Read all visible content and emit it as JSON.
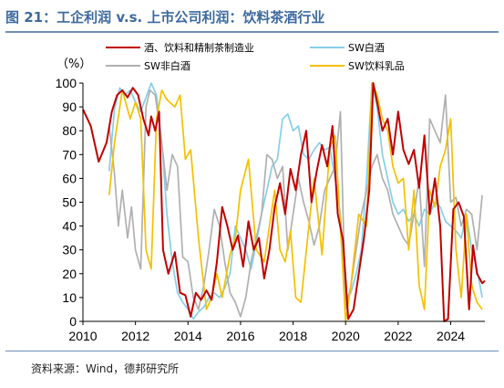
{
  "figure": {
    "title": "图 21：工企利润 v.s. 上市公司利润：饮料茶酒行业",
    "source": "资料来源：Wind，德邦研究所"
  },
  "chart_data": {
    "type": "line",
    "unit_label": "（%）",
    "xlim": [
      2010,
      2025.3
    ],
    "ylim": [
      0,
      100
    ],
    "x_ticks": [
      2010,
      2012,
      2014,
      2016,
      2018,
      2020,
      2022,
      2024
    ],
    "y_ticks": [
      0,
      10,
      20,
      30,
      40,
      50,
      60,
      70,
      80,
      90,
      100
    ],
    "grid": false,
    "legend": "top, two columns",
    "series": [
      {
        "name": "酒、饮料和精制茶制造业",
        "color": "#c00000",
        "points": [
          [
            2010.0,
            89
          ],
          [
            2010.3,
            82
          ],
          [
            2010.6,
            67
          ],
          [
            2010.9,
            75
          ],
          [
            2011.1,
            88
          ],
          [
            2011.3,
            95
          ],
          [
            2011.5,
            97
          ],
          [
            2011.7,
            94
          ],
          [
            2011.9,
            98
          ],
          [
            2012.1,
            95
          ],
          [
            2012.3,
            85
          ],
          [
            2012.5,
            78
          ],
          [
            2012.6,
            86
          ],
          [
            2012.75,
            80
          ],
          [
            2012.9,
            88
          ],
          [
            2013.05,
            30
          ],
          [
            2013.25,
            20
          ],
          [
            2013.5,
            29
          ],
          [
            2013.7,
            12
          ],
          [
            2013.9,
            11
          ],
          [
            2014.1,
            2
          ],
          [
            2014.3,
            12
          ],
          [
            2014.5,
            9
          ],
          [
            2014.7,
            13
          ],
          [
            2014.9,
            9
          ],
          [
            2015.1,
            25
          ],
          [
            2015.3,
            48
          ],
          [
            2015.5,
            40
          ],
          [
            2015.7,
            30
          ],
          [
            2015.9,
            36
          ],
          [
            2016.1,
            23
          ],
          [
            2016.3,
            42
          ],
          [
            2016.5,
            30
          ],
          [
            2016.7,
            35
          ],
          [
            2016.9,
            18
          ],
          [
            2017.1,
            30
          ],
          [
            2017.3,
            48
          ],
          [
            2017.5,
            58
          ],
          [
            2017.7,
            45
          ],
          [
            2017.9,
            64
          ],
          [
            2018.1,
            55
          ],
          [
            2018.3,
            70
          ],
          [
            2018.5,
            80
          ],
          [
            2018.7,
            50
          ],
          [
            2018.9,
            63
          ],
          [
            2019.1,
            74
          ],
          [
            2019.3,
            65
          ],
          [
            2019.5,
            82
          ],
          [
            2019.7,
            45
          ],
          [
            2019.9,
            34
          ],
          [
            2020.1,
            1
          ],
          [
            2020.3,
            5
          ],
          [
            2020.5,
            20
          ],
          [
            2020.7,
            35
          ],
          [
            2020.9,
            55
          ],
          [
            2021.05,
            100
          ],
          [
            2021.2,
            92
          ],
          [
            2021.4,
            80
          ],
          [
            2021.6,
            85
          ],
          [
            2021.8,
            70
          ],
          [
            2022.0,
            88
          ],
          [
            2022.2,
            72
          ],
          [
            2022.4,
            66
          ],
          [
            2022.6,
            72
          ],
          [
            2022.8,
            56
          ],
          [
            2023.0,
            78
          ],
          [
            2023.2,
            45
          ],
          [
            2023.4,
            60
          ],
          [
            2023.6,
            40
          ],
          [
            2023.75,
            0
          ],
          [
            2023.9,
            1
          ],
          [
            2024.1,
            47
          ],
          [
            2024.3,
            50
          ],
          [
            2024.5,
            44
          ],
          [
            2024.7,
            5
          ],
          [
            2024.85,
            32
          ],
          [
            2025.0,
            20
          ],
          [
            2025.2,
            16
          ],
          [
            2025.3,
            17
          ]
        ]
      },
      {
        "name": "SW白酒",
        "color": "#87cfe8",
        "points": [
          [
            2011.0,
            63
          ],
          [
            2011.2,
            89
          ],
          [
            2011.4,
            98
          ],
          [
            2011.6,
            95
          ],
          [
            2011.8,
            97
          ],
          [
            2012.0,
            92
          ],
          [
            2012.2,
            88
          ],
          [
            2012.4,
            94
          ],
          [
            2012.6,
            100
          ],
          [
            2012.8,
            95
          ],
          [
            2013.0,
            75
          ],
          [
            2013.2,
            45
          ],
          [
            2013.4,
            25
          ],
          [
            2013.6,
            12
          ],
          [
            2013.8,
            8
          ],
          [
            2014.0,
            5
          ],
          [
            2014.2,
            1
          ],
          [
            2014.4,
            4
          ],
          [
            2014.6,
            6
          ],
          [
            2014.8,
            10
          ],
          [
            2015.0,
            12
          ],
          [
            2015.2,
            10
          ],
          [
            2015.4,
            14
          ],
          [
            2015.6,
            20
          ],
          [
            2015.8,
            40
          ],
          [
            2016.0,
            35
          ],
          [
            2016.2,
            30
          ],
          [
            2016.4,
            22
          ],
          [
            2016.6,
            33
          ],
          [
            2016.8,
            45
          ],
          [
            2017.0,
            55
          ],
          [
            2017.2,
            65
          ],
          [
            2017.4,
            68
          ],
          [
            2017.6,
            85
          ],
          [
            2017.8,
            87
          ],
          [
            2018.0,
            80
          ],
          [
            2018.2,
            82
          ],
          [
            2018.4,
            70
          ],
          [
            2018.6,
            68
          ],
          [
            2018.8,
            72
          ],
          [
            2019.0,
            75
          ],
          [
            2019.2,
            72
          ],
          [
            2019.4,
            73
          ],
          [
            2019.6,
            60
          ],
          [
            2019.8,
            45
          ],
          [
            2020.0,
            10
          ],
          [
            2020.2,
            12
          ],
          [
            2020.4,
            20
          ],
          [
            2020.6,
            30
          ],
          [
            2020.8,
            60
          ],
          [
            2021.0,
            100
          ],
          [
            2021.2,
            90
          ],
          [
            2021.4,
            70
          ],
          [
            2021.6,
            60
          ],
          [
            2021.8,
            50
          ],
          [
            2022.0,
            45
          ],
          [
            2022.2,
            47
          ],
          [
            2022.4,
            42
          ],
          [
            2022.6,
            45
          ],
          [
            2022.8,
            40
          ],
          [
            2023.0,
            47
          ],
          [
            2023.2,
            45
          ],
          [
            2023.4,
            50
          ],
          [
            2023.6,
            48
          ],
          [
            2023.8,
            42
          ],
          [
            2024.0,
            40
          ],
          [
            2024.2,
            38
          ],
          [
            2024.4,
            35
          ],
          [
            2024.6,
            45
          ],
          [
            2024.8,
            30
          ],
          [
            2025.0,
            22
          ],
          [
            2025.2,
            10
          ]
        ]
      },
      {
        "name": "SW非白酒",
        "color": "#b0b0b0",
        "points": [
          [
            2011.0,
            82
          ],
          [
            2011.2,
            62
          ],
          [
            2011.35,
            40
          ],
          [
            2011.5,
            55
          ],
          [
            2011.7,
            35
          ],
          [
            2011.85,
            48
          ],
          [
            2012.0,
            30
          ],
          [
            2012.2,
            22
          ],
          [
            2012.4,
            90
          ],
          [
            2012.55,
            97
          ],
          [
            2012.75,
            95
          ],
          [
            2013.0,
            75
          ],
          [
            2013.2,
            55
          ],
          [
            2013.4,
            70
          ],
          [
            2013.6,
            65
          ],
          [
            2013.8,
            27
          ],
          [
            2014.0,
            25
          ],
          [
            2014.2,
            10
          ],
          [
            2014.4,
            5
          ],
          [
            2014.6,
            15
          ],
          [
            2014.8,
            30
          ],
          [
            2015.0,
            47
          ],
          [
            2015.2,
            40
          ],
          [
            2015.4,
            25
          ],
          [
            2015.6,
            12
          ],
          [
            2015.8,
            8
          ],
          [
            2016.0,
            2
          ],
          [
            2016.2,
            10
          ],
          [
            2016.4,
            25
          ],
          [
            2016.6,
            35
          ],
          [
            2016.8,
            45
          ],
          [
            2017.0,
            70
          ],
          [
            2017.2,
            68
          ],
          [
            2017.4,
            60
          ],
          [
            2017.6,
            65
          ],
          [
            2017.8,
            30
          ],
          [
            2018.0,
            45
          ],
          [
            2018.2,
            60
          ],
          [
            2018.4,
            50
          ],
          [
            2018.6,
            42
          ],
          [
            2018.8,
            32
          ],
          [
            2019.0,
            40
          ],
          [
            2019.2,
            55
          ],
          [
            2019.4,
            60
          ],
          [
            2019.6,
            65
          ],
          [
            2019.8,
            88
          ],
          [
            2020.0,
            5
          ],
          [
            2020.2,
            15
          ],
          [
            2020.4,
            30
          ],
          [
            2020.6,
            45
          ],
          [
            2020.8,
            55
          ],
          [
            2021.0,
            65
          ],
          [
            2021.2,
            70
          ],
          [
            2021.4,
            60
          ],
          [
            2021.6,
            55
          ],
          [
            2021.8,
            45
          ],
          [
            2022.0,
            40
          ],
          [
            2022.2,
            35
          ],
          [
            2022.4,
            32
          ],
          [
            2022.6,
            45
          ],
          [
            2022.8,
            60
          ],
          [
            2023.0,
            23
          ],
          [
            2023.2,
            85
          ],
          [
            2023.4,
            80
          ],
          [
            2023.6,
            75
          ],
          [
            2023.8,
            95
          ],
          [
            2024.0,
            50
          ],
          [
            2024.2,
            52
          ],
          [
            2024.4,
            40
          ],
          [
            2024.6,
            47
          ],
          [
            2024.8,
            45
          ],
          [
            2025.0,
            30
          ],
          [
            2025.2,
            53
          ]
        ]
      },
      {
        "name": "SW饮料乳品",
        "color": "#f5c000",
        "points": [
          [
            2011.0,
            53
          ],
          [
            2011.2,
            75
          ],
          [
            2011.5,
            97
          ],
          [
            2011.8,
            85
          ],
          [
            2012.0,
            92
          ],
          [
            2012.2,
            85
          ],
          [
            2012.4,
            30
          ],
          [
            2012.6,
            22
          ],
          [
            2012.8,
            85
          ],
          [
            2013.0,
            97
          ],
          [
            2013.2,
            93
          ],
          [
            2013.5,
            90
          ],
          [
            2013.7,
            95
          ],
          [
            2013.9,
            68
          ],
          [
            2014.1,
            72
          ],
          [
            2014.4,
            35
          ],
          [
            2014.7,
            5
          ],
          [
            2014.9,
            10
          ],
          [
            2015.1,
            20
          ],
          [
            2015.3,
            10
          ],
          [
            2015.6,
            28
          ],
          [
            2015.8,
            35
          ],
          [
            2016.0,
            55
          ],
          [
            2016.3,
            68
          ],
          [
            2016.6,
            30
          ],
          [
            2016.9,
            25
          ],
          [
            2017.1,
            40
          ],
          [
            2017.3,
            55
          ],
          [
            2017.5,
            30
          ],
          [
            2017.7,
            25
          ],
          [
            2017.9,
            38
          ],
          [
            2018.1,
            10
          ],
          [
            2018.3,
            8
          ],
          [
            2018.6,
            40
          ],
          [
            2018.8,
            60
          ],
          [
            2019.1,
            28
          ],
          [
            2019.4,
            73
          ],
          [
            2019.6,
            78
          ],
          [
            2019.8,
            40
          ],
          [
            2020.0,
            0
          ],
          [
            2020.2,
            15
          ],
          [
            2020.5,
            45
          ],
          [
            2020.8,
            40
          ],
          [
            2021.0,
            100
          ],
          [
            2021.2,
            95
          ],
          [
            2021.4,
            85
          ],
          [
            2021.6,
            80
          ],
          [
            2021.8,
            65
          ],
          [
            2022.0,
            58
          ],
          [
            2022.2,
            60
          ],
          [
            2022.4,
            30
          ],
          [
            2022.6,
            55
          ],
          [
            2022.8,
            15
          ],
          [
            2023.0,
            5
          ],
          [
            2023.2,
            55
          ],
          [
            2023.4,
            48
          ],
          [
            2023.6,
            65
          ],
          [
            2023.8,
            72
          ],
          [
            2024.0,
            85
          ],
          [
            2024.2,
            30
          ],
          [
            2024.4,
            10
          ],
          [
            2024.6,
            45
          ],
          [
            2024.8,
            15
          ],
          [
            2025.0,
            8
          ],
          [
            2025.2,
            5
          ]
        ]
      }
    ]
  }
}
